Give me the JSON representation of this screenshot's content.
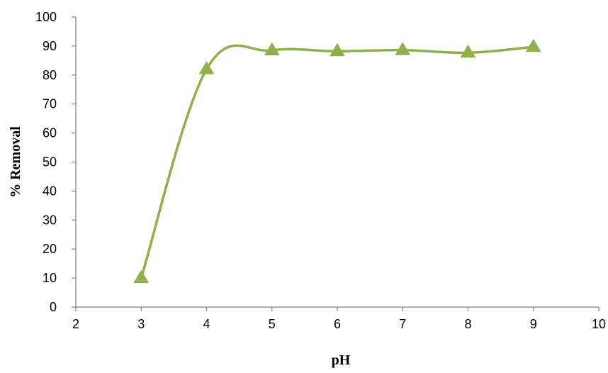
{
  "chart_data": {
    "type": "line",
    "title": "",
    "xlabel": "pH",
    "ylabel": "% Removal",
    "xlim": [
      2,
      10
    ],
    "ylim": [
      0,
      100
    ],
    "x_ticks": [
      2,
      3,
      4,
      5,
      6,
      7,
      8,
      9,
      10
    ],
    "y_ticks": [
      0,
      10,
      20,
      30,
      40,
      50,
      60,
      70,
      80,
      90,
      100
    ],
    "grid": false,
    "legend": "none",
    "smooth": true,
    "marker": "triangle",
    "series": [
      {
        "color": "#8fb04b",
        "x": [
          3,
          4,
          5,
          6,
          7,
          8,
          9
        ],
        "y": [
          10,
          82,
          88.5,
          88.2,
          88.6,
          87.7,
          89.7
        ]
      }
    ]
  }
}
